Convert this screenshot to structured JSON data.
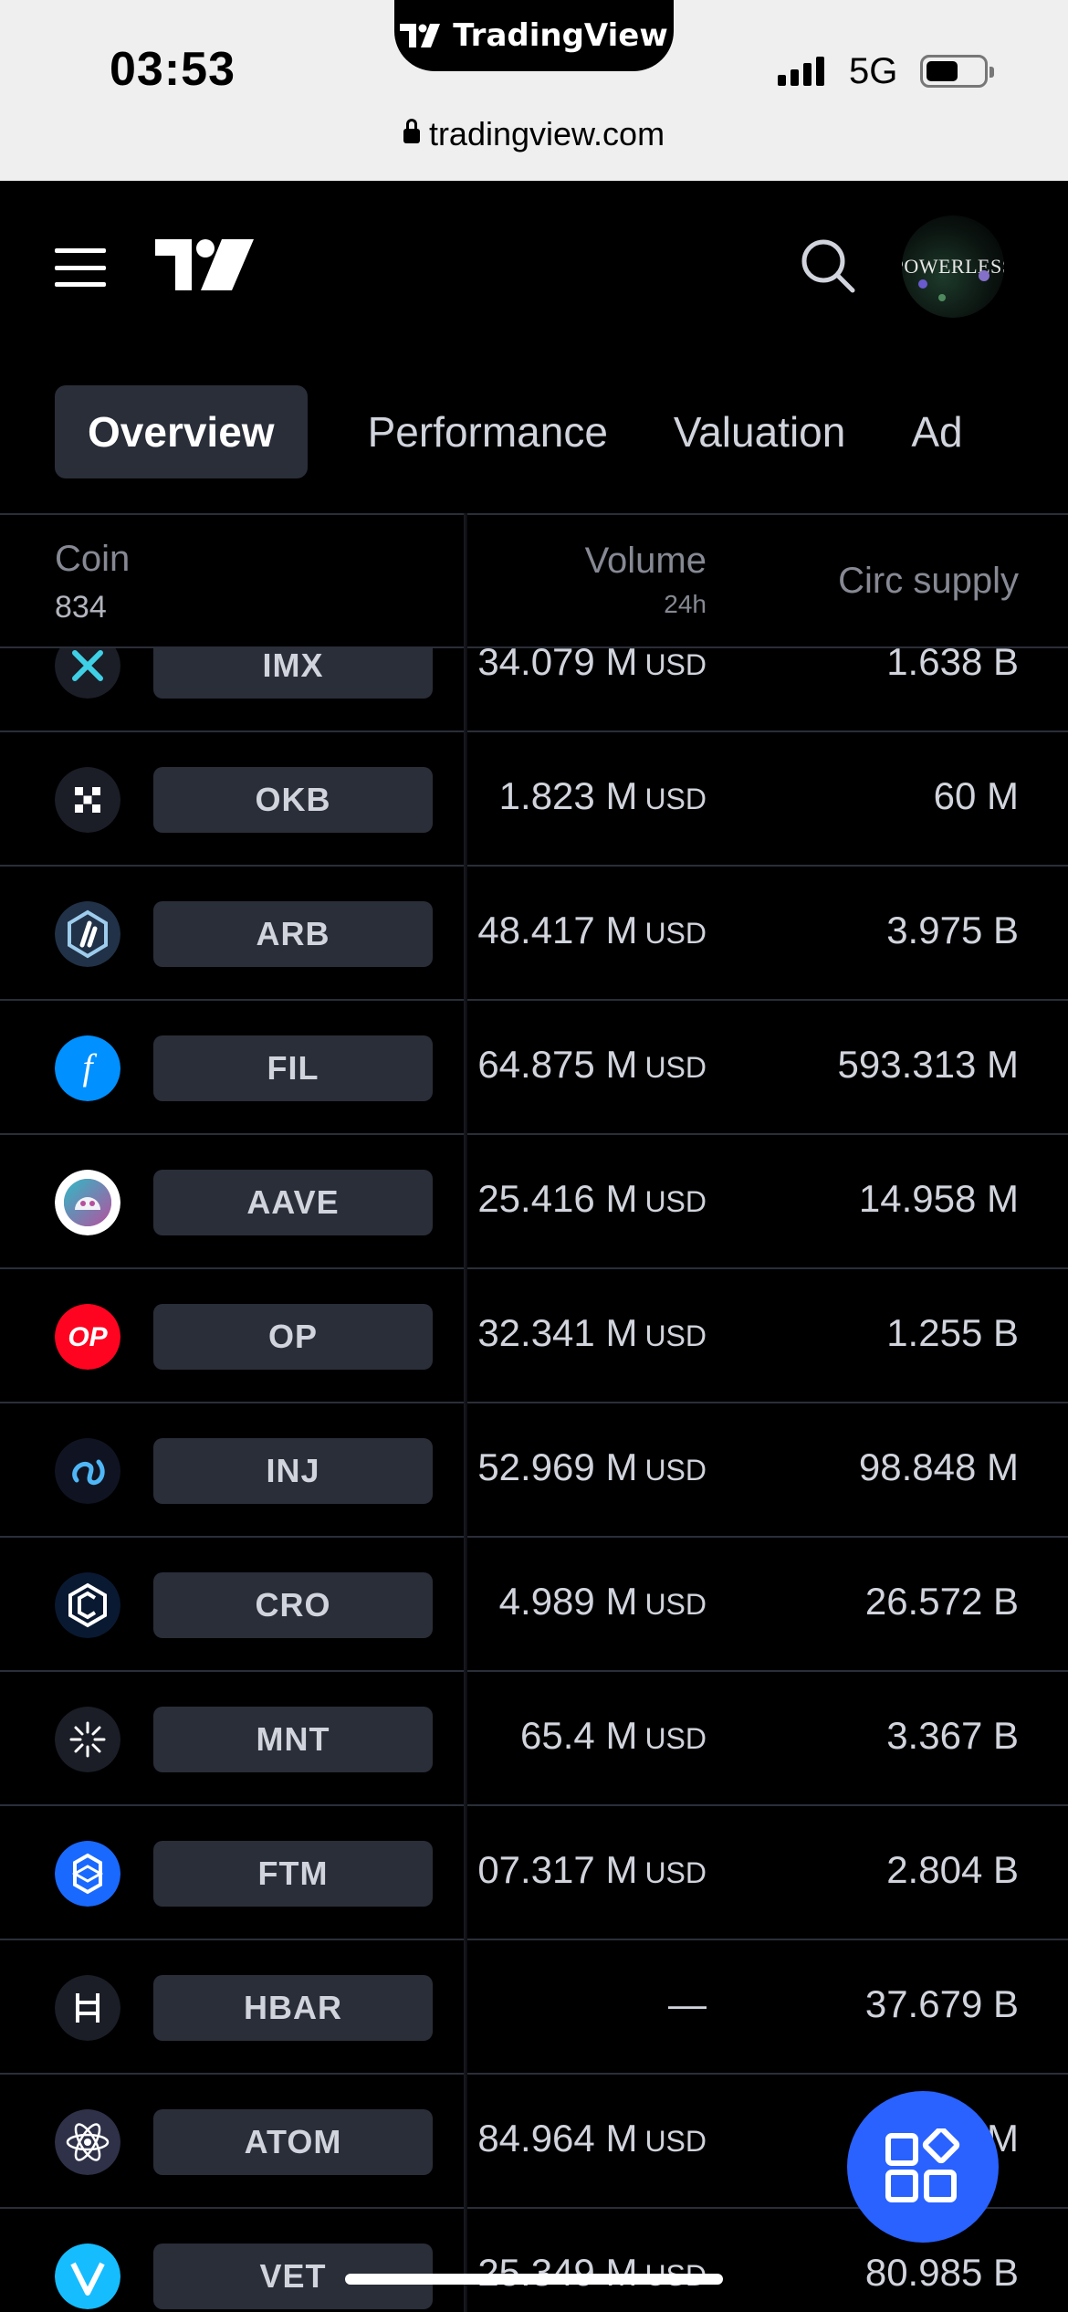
{
  "status_bar": {
    "time": "03:53",
    "island_label": "TradingView",
    "network": "5G",
    "url": "tradingview.com"
  },
  "header": {
    "avatar_text": "POWERLESS"
  },
  "tabs": [
    {
      "label": "Overview",
      "active": true
    },
    {
      "label": "Performance",
      "active": false
    },
    {
      "label": "Valuation",
      "active": false
    },
    {
      "label": "Ad",
      "active": false
    }
  ],
  "table": {
    "col_coin": "Coin",
    "coin_count": "834",
    "col_volume": "Volume",
    "col_volume_sub": "24h",
    "col_supply": "Circ supply",
    "rows": [
      {
        "ticker": "IMX",
        "icon": "imx-icon",
        "volume": "34.079 M",
        "unit": "USD",
        "supply": "1.638 B"
      },
      {
        "ticker": "OKB",
        "icon": "okb-icon",
        "volume": "1.823 M",
        "unit": "USD",
        "supply": "60 M"
      },
      {
        "ticker": "ARB",
        "icon": "arb-icon",
        "volume": "48.417 M",
        "unit": "USD",
        "supply": "3.975 B"
      },
      {
        "ticker": "FIL",
        "icon": "fil-icon",
        "volume": "64.875 M",
        "unit": "USD",
        "supply": "593.313 M"
      },
      {
        "ticker": "AAVE",
        "icon": "aave-icon",
        "volume": "25.416 M",
        "unit": "USD",
        "supply": "14.958 M"
      },
      {
        "ticker": "OP",
        "icon": "op-icon",
        "volume": "32.341 M",
        "unit": "USD",
        "supply": "1.255 B"
      },
      {
        "ticker": "INJ",
        "icon": "inj-icon",
        "volume": "52.969 M",
        "unit": "USD",
        "supply": "98.848 M"
      },
      {
        "ticker": "CRO",
        "icon": "cro-icon",
        "volume": "4.989 M",
        "unit": "USD",
        "supply": "26.572 B"
      },
      {
        "ticker": "MNT",
        "icon": "mnt-icon",
        "volume": "65.4 M",
        "unit": "USD",
        "supply": "3.367 B"
      },
      {
        "ticker": "FTM",
        "icon": "ftm-icon",
        "volume": "07.317 M",
        "unit": "USD",
        "supply": "2.804 B"
      },
      {
        "ticker": "HBAR",
        "icon": "hbar-icon",
        "volume": "—",
        "unit": "",
        "supply": "37.679 B"
      },
      {
        "ticker": "ATOM",
        "icon": "atom-icon",
        "volume": "84.964 M",
        "unit": "USD",
        "supply": "3 M"
      },
      {
        "ticker": "VET",
        "icon": "vet-icon",
        "volume": "25.349 M",
        "unit": "USD",
        "supply": "80.985 B"
      }
    ]
  },
  "colors": {
    "background": "#000000",
    "pill": "#2a2e39",
    "text": "#d1d4dc",
    "muted": "#868993",
    "accent": "#2962ff"
  }
}
